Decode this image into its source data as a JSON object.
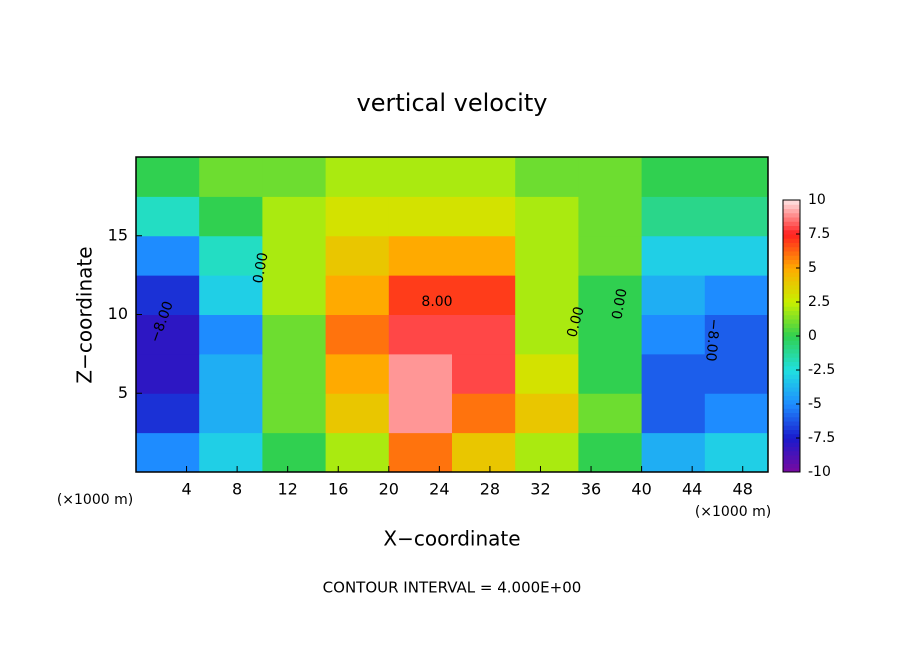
{
  "chart_data": {
    "type": "contour",
    "title": "vertical velocity",
    "x_label": "X−coordinate",
    "y_label": "Z−coordinate",
    "x_unit": "(×1000 m)",
    "footer": "CONTOUR INTERVAL = 4.000E+00",
    "xlim": [
      0,
      50
    ],
    "ylim": [
      0,
      20
    ],
    "xticks": [
      4,
      8,
      12,
      16,
      20,
      24,
      28,
      32,
      36,
      40,
      44,
      48
    ],
    "yticks": [
      5,
      10,
      15
    ],
    "x": [
      2.5,
      7.5,
      12.5,
      17.5,
      22.5,
      27.5,
      32.5,
      37.5,
      42.5,
      47.5
    ],
    "y": [
      1.25,
      3.75,
      6.25,
      8.75,
      11.25,
      13.75,
      16.25,
      18.75
    ],
    "z": [
      [
        -5,
        -3,
        0,
        2,
        6,
        4,
        2,
        0,
        -4,
        -3
      ],
      [
        -7,
        -4,
        1,
        4,
        9,
        6,
        4,
        1,
        -6,
        -5
      ],
      [
        -8,
        -4,
        1,
        5,
        9,
        8,
        3,
        0,
        -6,
        -6
      ],
      [
        -8,
        -5,
        1,
        6,
        8,
        8,
        2,
        0,
        -5,
        -6
      ],
      [
        -7,
        -3,
        2,
        5,
        7,
        7,
        2,
        0,
        -4,
        -5
      ],
      [
        -5,
        -2,
        2,
        4,
        5,
        5,
        2,
        1,
        -3,
        -3
      ],
      [
        -2,
        0,
        2,
        3,
        3,
        3,
        2,
        1,
        -1,
        -1
      ],
      [
        0,
        1,
        1,
        2,
        2,
        2,
        1,
        1,
        0,
        0
      ]
    ],
    "zlim": [
      -10,
      10
    ],
    "zticks": [
      10,
      7.5,
      5,
      2.5,
      0,
      -2.5,
      -5,
      -7.5,
      -10
    ],
    "colorscale": [
      "#7a0aa0",
      "#1a1acc",
      "#1e8cff",
      "#20e0e0",
      "#30d050",
      "#c8f000",
      "#ffaa00",
      "#ff2020",
      "#ffe4e4"
    ],
    "annotations": [
      "0.00",
      "−8.00",
      "8.00",
      "0.00",
      "0.00",
      "−8.00"
    ]
  }
}
